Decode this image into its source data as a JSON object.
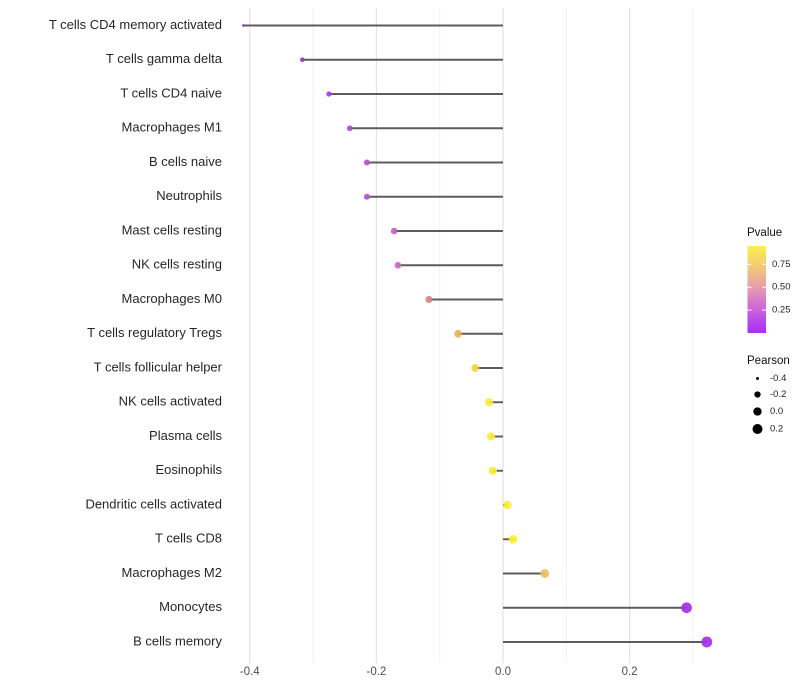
{
  "chart_data": {
    "type": "scatter",
    "subtype": "lollipop",
    "title": "",
    "xlabel": "",
    "ylabel": "",
    "x_axis": {
      "ticks": [
        -0.4,
        -0.2,
        0.0,
        0.2
      ],
      "tick_labels": [
        "-0.4",
        "-0.2",
        "0.0",
        "0.2"
      ],
      "minor_ticks": [
        -0.3,
        -0.1,
        0.1,
        0.3
      ],
      "range": [
        -0.435,
        0.385
      ],
      "grid": true
    },
    "points": [
      {
        "label": "T cells CD4 memory activated",
        "pearson": -0.41,
        "dot_color": "#8c2bd0",
        "pvalue_approx": 0.08
      },
      {
        "label": "T cells gamma delta",
        "pearson": -0.317,
        "dot_color": "#9c31d8",
        "pvalue_approx": 0.1
      },
      {
        "label": "T cells CD4 naive",
        "pearson": -0.275,
        "dot_color": "#a63ae0",
        "pvalue_approx": 0.12
      },
      {
        "label": "Macrophages M1",
        "pearson": -0.242,
        "dot_color": "#af44da",
        "pvalue_approx": 0.15
      },
      {
        "label": "B cells naive",
        "pearson": -0.215,
        "dot_color": "#b84fd2",
        "pvalue_approx": 0.18
      },
      {
        "label": "Neutrophils",
        "pearson": -0.215,
        "dot_color": "#b951d1",
        "pvalue_approx": 0.18
      },
      {
        "label": "Mast cells resting",
        "pearson": -0.172,
        "dot_color": "#c55ec6",
        "pvalue_approx": 0.25
      },
      {
        "label": "NK cells resting",
        "pearson": -0.166,
        "dot_color": "#cb66bc",
        "pvalue_approx": 0.28
      },
      {
        "label": "Macrophages M0",
        "pearson": -0.117,
        "dot_color": "#d9837d",
        "pvalue_approx": 0.45
      },
      {
        "label": "T cells regulatory  Tregs",
        "pearson": -0.071,
        "dot_color": "#e9b156",
        "pvalue_approx": 0.65
      },
      {
        "label": "T cells follicular helper",
        "pearson": -0.044,
        "dot_color": "#f1d348",
        "pvalue_approx": 0.78
      },
      {
        "label": "NK cells activated",
        "pearson": -0.022,
        "dot_color": "#f8e93a",
        "pvalue_approx": 0.88
      },
      {
        "label": "Plasma cells",
        "pearson": -0.019,
        "dot_color": "#f9eb36",
        "pvalue_approx": 0.9
      },
      {
        "label": "Eosinophils",
        "pearson": -0.016,
        "dot_color": "#f9ec38",
        "pvalue_approx": 0.9
      },
      {
        "label": "Dendritic cells activated",
        "pearson": 0.007,
        "dot_color": "#fbee30",
        "pvalue_approx": 0.92
      },
      {
        "label": "T cells CD8",
        "pearson": 0.016,
        "dot_color": "#fbef2e",
        "pvalue_approx": 0.92
      },
      {
        "label": "Macrophages M2",
        "pearson": 0.066,
        "dot_color": "#f0bc62",
        "pvalue_approx": 0.68
      },
      {
        "label": "Monocytes",
        "pearson": 0.29,
        "dot_color": "#9f2ce4",
        "pvalue_approx": 0.07
      },
      {
        "label": "B cells memory",
        "pearson": 0.322,
        "dot_color": "#a32cea",
        "pvalue_approx": 0.06
      }
    ],
    "legends": {
      "pvalue": {
        "title": "Pvalue",
        "tick_values": [
          0.75,
          0.5,
          0.25
        ],
        "tick_labels": [
          "0.75",
          "0.50",
          "0.25"
        ],
        "bar_range": [
          0.0,
          0.95
        ],
        "gradient_bottom_to_top": [
          "#a72df7",
          "#c95ee0",
          "#e897b3",
          "#f3c878",
          "#fbf04a"
        ],
        "position": "right"
      },
      "pearson": {
        "title": "Pearson",
        "entries": [
          {
            "label": "-0.4",
            "value": -0.4
          },
          {
            "label": "-0.2",
            "value": -0.2
          },
          {
            "label": "0.0",
            "value": 0.0
          },
          {
            "label": "0.2",
            "value": 0.2
          }
        ],
        "dot_color": "#000000",
        "position": "right"
      }
    },
    "style": {
      "background": "#ffffff",
      "stem_color": "#5c5c5c",
      "grid_major_color": "#e3e3e3",
      "grid_minor_color": "#f1f1f1",
      "y_label_color": "#262626",
      "x_tick_color": "#4d4d4d",
      "legend_text_color": "#222222"
    }
  }
}
